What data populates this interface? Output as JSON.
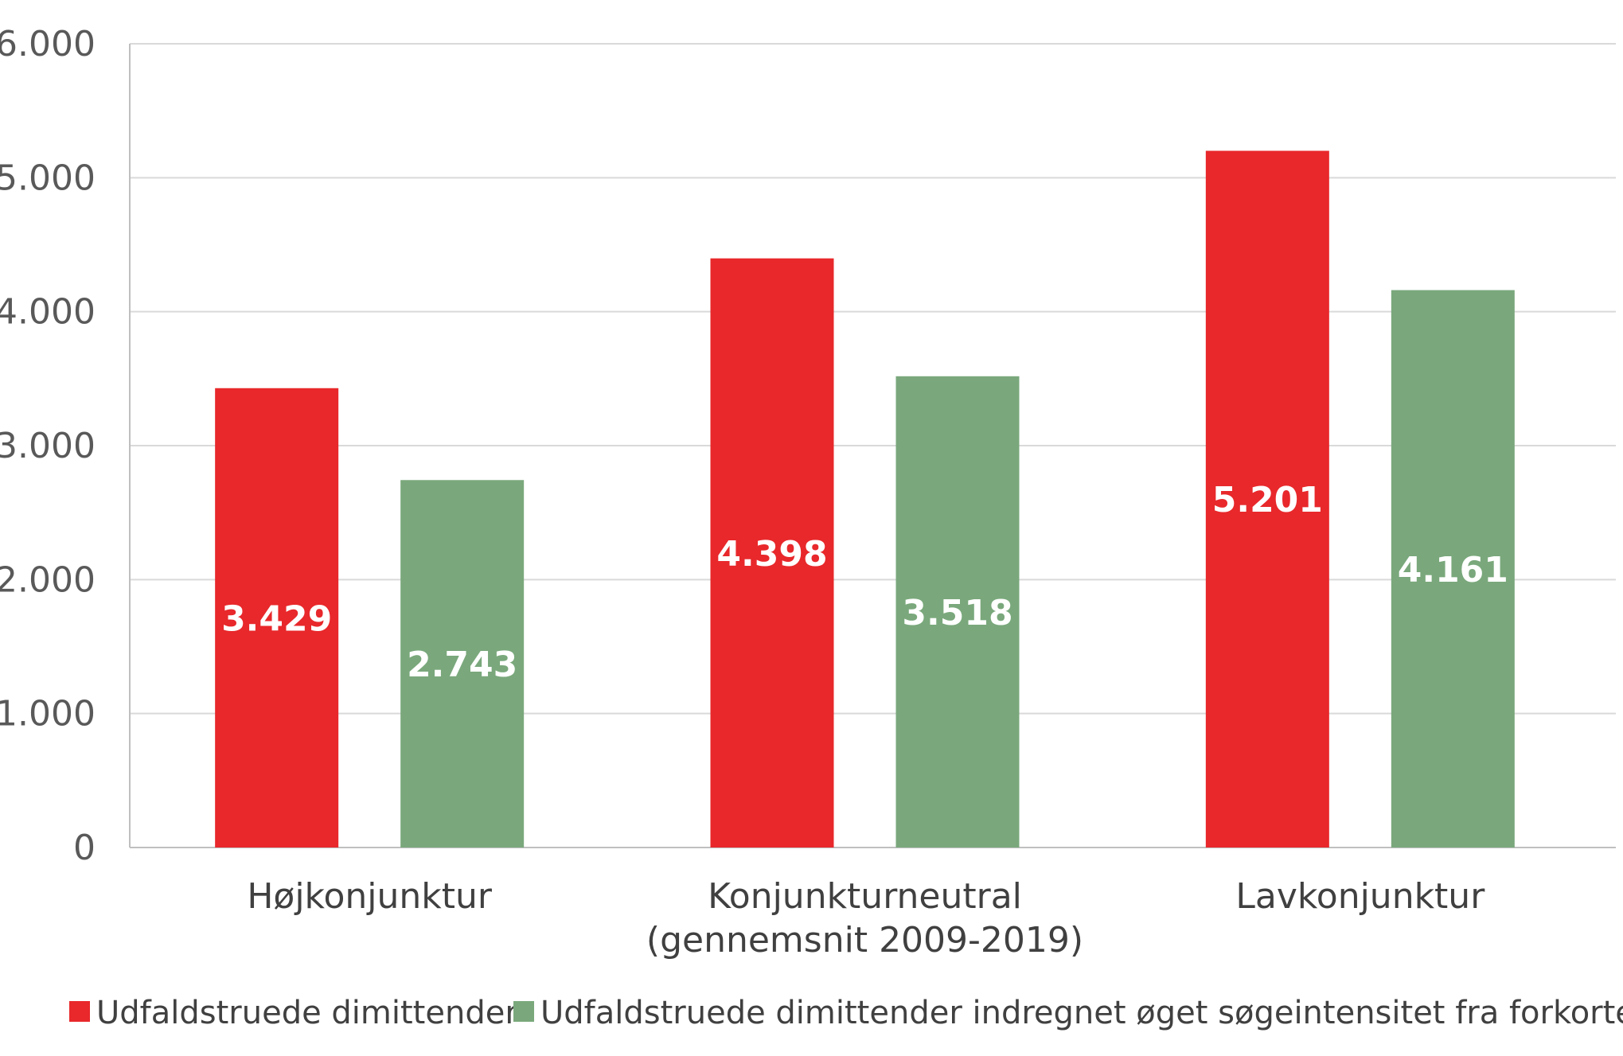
{
  "chart_data": {
    "type": "bar",
    "title": "",
    "xlabel": "",
    "ylabel": "",
    "ylim": [
      0,
      6000
    ],
    "yticks": [
      0,
      1000,
      2000,
      3000,
      4000,
      5000,
      6000
    ],
    "ytick_labels": [
      "0",
      "1.000",
      "2.000",
      "3.000",
      "4.000",
      "5.000",
      "6.000"
    ],
    "grid": true,
    "legend_position": "bottom",
    "categories": [
      [
        "Højkonjunktur"
      ],
      [
        "Konjunkturneutral",
        "(gennemsnit 2009-2019)"
      ],
      [
        "Lavkonjunktur"
      ]
    ],
    "series": [
      {
        "name": "Udfaldstruede dimittender",
        "color": "#E8282B",
        "values": [
          3429,
          4398,
          5201
        ],
        "labels": [
          "3.429",
          "4.398",
          "5.201"
        ]
      },
      {
        "name": "Udfaldstruede dimittender indregnet øget søgeintensitet fra forkortelse",
        "color": "#7AA87C",
        "values": [
          2743,
          3518,
          4161
        ],
        "labels": [
          "2.743",
          "3.518",
          "4.161"
        ]
      }
    ]
  }
}
